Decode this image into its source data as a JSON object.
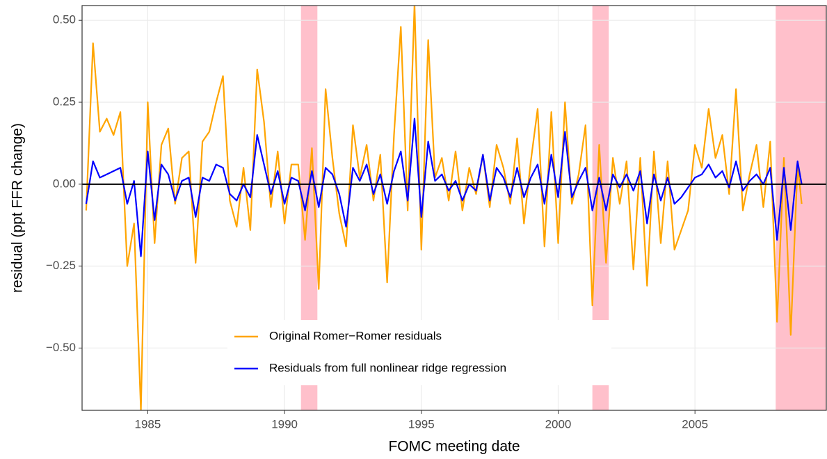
{
  "chart_data": {
    "type": "line",
    "xlabel": "FOMC meeting date",
    "ylabel": "residual (ppt FFR change)",
    "xlim": [
      1982.6,
      2009.8
    ],
    "ylim": [
      -0.69,
      0.545
    ],
    "xticks": [
      1985,
      1990,
      1995,
      2000,
      2005
    ],
    "yticks": [
      {
        "value": -0.5,
        "label": "−0.50"
      },
      {
        "value": -0.25,
        "label": "−0.25"
      },
      {
        "value": 0,
        "label": "0.00"
      },
      {
        "value": 0.25,
        "label": "0.25"
      },
      {
        "value": 0.5,
        "label": "0.50"
      }
    ],
    "grid": true,
    "hline": 0,
    "legend_position": "bottom",
    "shaded_regions": [
      {
        "start": 1990.6,
        "end": 1991.2,
        "color": "#ffc0cb"
      },
      {
        "start": 2001.25,
        "end": 2001.85,
        "color": "#ffc0cb"
      },
      {
        "start": 2007.95,
        "end": 2009.8,
        "color": "#ffc0cb"
      }
    ],
    "x": [
      1982.75,
      1983.0,
      1983.25,
      1983.5,
      1983.75,
      1984.0,
      1984.25,
      1984.5,
      1984.75,
      1985.0,
      1985.25,
      1985.5,
      1985.75,
      1986.0,
      1986.25,
      1986.5,
      1986.75,
      1987.0,
      1987.25,
      1987.5,
      1987.75,
      1988.0,
      1988.25,
      1988.5,
      1988.75,
      1989.0,
      1989.25,
      1989.5,
      1989.75,
      1990.0,
      1990.25,
      1990.5,
      1990.75,
      1991.0,
      1991.25,
      1991.5,
      1991.75,
      1992.0,
      1992.25,
      1992.5,
      1992.75,
      1993.0,
      1993.25,
      1993.5,
      1993.75,
      1994.0,
      1994.25,
      1994.5,
      1994.75,
      1995.0,
      1995.25,
      1995.5,
      1995.75,
      1996.0,
      1996.25,
      1996.5,
      1996.75,
      1997.0,
      1997.25,
      1997.5,
      1997.75,
      1998.0,
      1998.25,
      1998.5,
      1998.75,
      1999.0,
      1999.25,
      1999.5,
      1999.75,
      2000.0,
      2000.25,
      2000.5,
      2000.75,
      2001.0,
      2001.25,
      2001.5,
      2001.75,
      2002.0,
      2002.25,
      2002.5,
      2002.75,
      2003.0,
      2003.25,
      2003.5,
      2003.75,
      2004.0,
      2004.25,
      2004.5,
      2004.75,
      2005.0,
      2005.25,
      2005.5,
      2005.75,
      2006.0,
      2006.25,
      2006.5,
      2006.75,
      2007.0,
      2007.25,
      2007.5,
      2007.75,
      2008.0,
      2008.25,
      2008.5,
      2008.75,
      2008.9
    ],
    "series": [
      {
        "name": "Original Romer−Romer residuals",
        "color": "#ffa500",
        "values": [
          -0.08,
          0.43,
          0.16,
          0.2,
          0.15,
          0.22,
          -0.25,
          -0.12,
          -0.69,
          0.25,
          -0.18,
          0.12,
          0.17,
          -0.06,
          0.08,
          0.1,
          -0.24,
          0.13,
          0.16,
          0.25,
          0.33,
          -0.05,
          -0.13,
          0.05,
          -0.14,
          0.35,
          0.19,
          -0.07,
          0.1,
          -0.12,
          0.06,
          0.06,
          -0.17,
          0.11,
          -0.32,
          0.29,
          0.08,
          -0.09,
          -0.19,
          0.18,
          0.02,
          0.12,
          -0.05,
          0.09,
          -0.3,
          0.15,
          0.48,
          -0.08,
          0.55,
          -0.2,
          0.44,
          0.02,
          0.08,
          -0.05,
          0.1,
          -0.08,
          0.05,
          -0.03,
          0.09,
          -0.07,
          0.12,
          0.05,
          -0.06,
          0.14,
          -0.12,
          0.07,
          0.23,
          -0.19,
          0.22,
          -0.18,
          0.25,
          -0.06,
          0.03,
          0.18,
          -0.37,
          0.12,
          -0.24,
          0.08,
          -0.06,
          0.07,
          -0.26,
          0.08,
          -0.31,
          0.1,
          -0.18,
          0.07,
          -0.2,
          -0.14,
          -0.08,
          0.12,
          0.05,
          0.23,
          0.08,
          0.15,
          -0.03,
          0.29,
          -0.08,
          0.03,
          0.12,
          -0.07,
          0.13,
          -0.42,
          0.08,
          -0.46,
          0.06,
          -0.06
        ]
      },
      {
        "name": "Residuals from full nonlinear ridge regression",
        "color": "#0000ff",
        "values": [
          -0.06,
          0.07,
          0.02,
          0.03,
          0.04,
          0.05,
          -0.06,
          0.01,
          -0.22,
          0.1,
          -0.11,
          0.06,
          0.03,
          -0.05,
          0.01,
          0.02,
          -0.1,
          0.02,
          0.01,
          0.06,
          0.05,
          -0.03,
          -0.05,
          0.0,
          -0.04,
          0.15,
          0.06,
          -0.03,
          0.04,
          -0.06,
          0.02,
          0.01,
          -0.08,
          0.04,
          -0.07,
          0.05,
          0.03,
          -0.03,
          -0.13,
          0.05,
          0.01,
          0.06,
          -0.03,
          0.03,
          -0.06,
          0.04,
          0.1,
          -0.05,
          0.2,
          -0.1,
          0.13,
          0.01,
          0.03,
          -0.02,
          0.01,
          -0.05,
          0.0,
          -0.02,
          0.09,
          -0.05,
          0.05,
          0.02,
          -0.04,
          0.05,
          -0.04,
          0.02,
          0.06,
          -0.06,
          0.09,
          -0.04,
          0.16,
          -0.04,
          0.01,
          0.05,
          -0.08,
          0.02,
          -0.08,
          0.03,
          -0.01,
          0.03,
          -0.02,
          0.04,
          -0.12,
          0.03,
          -0.05,
          0.02,
          -0.06,
          -0.04,
          -0.01,
          0.02,
          0.03,
          0.06,
          0.02,
          0.04,
          -0.01,
          0.07,
          -0.02,
          0.01,
          0.03,
          0.0,
          0.05,
          -0.17,
          0.05,
          -0.14,
          0.07,
          0.0
        ]
      }
    ]
  }
}
